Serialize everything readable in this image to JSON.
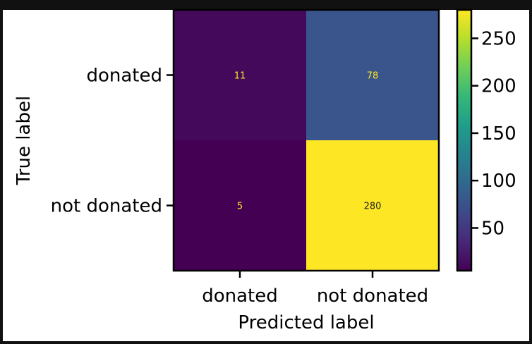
{
  "chart_data": {
    "type": "heatmap",
    "title": "",
    "xlabel": "Predicted label",
    "ylabel": "True label",
    "x_categories": [
      "donated",
      "not donated"
    ],
    "y_categories": [
      "donated",
      "not donated"
    ],
    "values": [
      [
        11,
        78
      ],
      [
        5,
        280
      ]
    ],
    "value_labels": [
      [
        "11",
        "78"
      ],
      [
        "5",
        "280"
      ]
    ],
    "colorbar": {
      "min": 5,
      "max": 280,
      "ticks": [
        50,
        100,
        150,
        200,
        250
      ],
      "tick_labels": [
        "50",
        "100",
        "150",
        "200",
        "250"
      ]
    },
    "colormap": "viridis",
    "grid": false,
    "annotation_color": "#FDE725"
  }
}
